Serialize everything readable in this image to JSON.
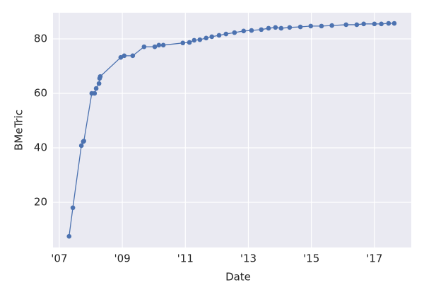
{
  "chart_data": {
    "type": "line",
    "x_label": "Date",
    "y_label": "BMeTric",
    "x": [
      2007.31,
      2007.43,
      2007.7,
      2007.76,
      2007.78,
      2008.03,
      2008.12,
      2008.17,
      2008.26,
      2008.28,
      2008.3,
      2008.95,
      2009.06,
      2009.33,
      2009.69,
      2010.03,
      2010.16,
      2010.3,
      2010.92,
      2011.13,
      2011.28,
      2011.46,
      2011.66,
      2011.84,
      2012.07,
      2012.29,
      2012.56,
      2012.85,
      2013.1,
      2013.41,
      2013.64,
      2013.86,
      2014.04,
      2014.31,
      2014.65,
      2014.98,
      2015.32,
      2015.65,
      2016.1,
      2016.44,
      2016.66,
      2017.0,
      2017.22,
      2017.45,
      2017.63
    ],
    "series": [
      {
        "name": "BMeTric",
        "color": "#4c72b0",
        "values": [
          7.5,
          18,
          40.8,
          42.3,
          42.5,
          60,
          60,
          61.8,
          63.6,
          65.5,
          66.2,
          73.2,
          73.8,
          73.8,
          77.1,
          77.1,
          77.7,
          77.7,
          78.5,
          78.7,
          79.5,
          79.7,
          80.3,
          80.8,
          81.3,
          81.8,
          82.3,
          82.9,
          83.1,
          83.4,
          83.9,
          84.2,
          83.9,
          84.2,
          84.4,
          84.7,
          84.7,
          84.9,
          85.2,
          85.2,
          85.5,
          85.5,
          85.5,
          85.7,
          85.7
        ]
      }
    ],
    "xlim": [
      2006.8,
      2018.17
    ],
    "xticks": [
      {
        "value": 2007,
        "label": "'07"
      },
      {
        "value": 2009,
        "label": "'09"
      },
      {
        "value": 2011,
        "label": "'11"
      },
      {
        "value": 2013,
        "label": "'13"
      },
      {
        "value": 2015,
        "label": "'15"
      },
      {
        "value": 2017,
        "label": "'17"
      }
    ],
    "ylim": [
      3.4,
      89.6
    ],
    "yticks": [
      20,
      40,
      60,
      80
    ],
    "grid": true,
    "background": "#eaeaf2"
  }
}
